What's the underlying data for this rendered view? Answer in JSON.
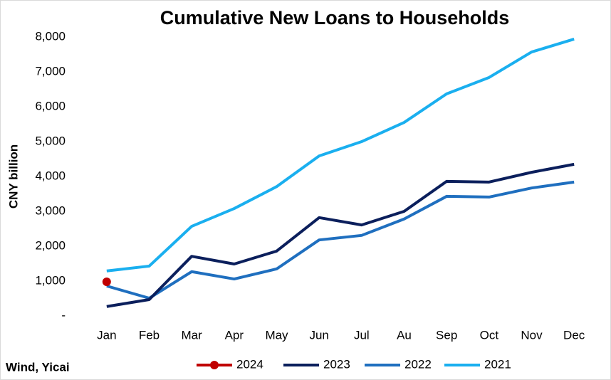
{
  "chart_data": {
    "type": "line",
    "title": "Cumulative New Loans to Households",
    "y_label": "CNY billion",
    "source": "Wind, Yicai",
    "categories": [
      "Jan",
      "Feb",
      "Mar",
      "Apr",
      "May",
      "Jun",
      "Jul",
      "Au",
      "Sep",
      "Oct",
      "Nov",
      "Dec"
    ],
    "series": [
      {
        "name": "2024",
        "color": "#c00000",
        "marker": true,
        "values": [
          980,
          null,
          null,
          null,
          null,
          null,
          null,
          null,
          null,
          null,
          null,
          null
        ]
      },
      {
        "name": "2023",
        "color": "#0b1f5c",
        "values": [
          270,
          470,
          1710,
          1490,
          1860,
          2820,
          2610,
          3000,
          3860,
          3840,
          4120,
          4350
        ]
      },
      {
        "name": "2022",
        "color": "#1f6fbf",
        "values": [
          860,
          510,
          1270,
          1060,
          1350,
          2180,
          2310,
          2780,
          3430,
          3410,
          3670,
          3840
        ]
      },
      {
        "name": "2021",
        "color": "#1aafef",
        "values": [
          1290,
          1430,
          2570,
          3080,
          3710,
          4590,
          5000,
          5550,
          6370,
          6840,
          7570,
          7940
        ]
      }
    ],
    "ylim": [
      0,
      8000
    ],
    "yticks": [
      {
        "value": 0,
        "label": "-"
      },
      {
        "value": 1000,
        "label": "1,000"
      },
      {
        "value": 2000,
        "label": "2,000"
      },
      {
        "value": 3000,
        "label": "3,000"
      },
      {
        "value": 4000,
        "label": "4,000"
      },
      {
        "value": 5000,
        "label": "5,000"
      },
      {
        "value": 6000,
        "label": "6,000"
      },
      {
        "value": 7000,
        "label": "7,000"
      },
      {
        "value": 8000,
        "label": "8,000"
      }
    ],
    "grid": false,
    "legend": "bottom"
  }
}
